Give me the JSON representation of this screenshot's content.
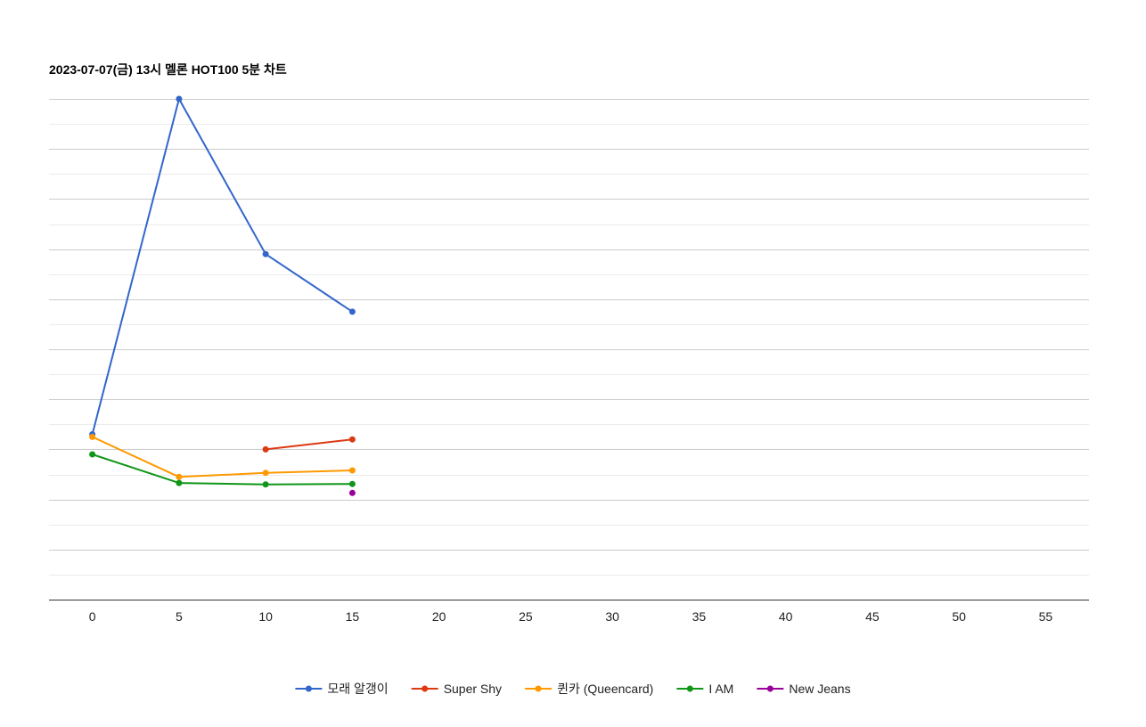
{
  "chart_data": {
    "type": "line",
    "title": "2023-07-07(금) 13시 멜론 HOT100 5분 차트",
    "xlabel": "",
    "ylabel": "",
    "x_ticks": [
      0,
      5,
      10,
      15,
      20,
      25,
      30,
      35,
      40,
      45,
      50,
      55
    ],
    "xlim": [
      -2.5,
      57.5
    ],
    "ylim": [
      0,
      10
    ],
    "y_gridlines": [
      0,
      0.5,
      1,
      1.5,
      2,
      2.5,
      3,
      3.5,
      4,
      4.5,
      5,
      5.5,
      6,
      6.5,
      7,
      7.5,
      8,
      8.5,
      9,
      9.5,
      10
    ],
    "y_major_gridlines": [
      1,
      2,
      3,
      4,
      5,
      6,
      7,
      8,
      9,
      10
    ],
    "y_tick_labels_shown": false,
    "grid": true,
    "legend_position": "bottom",
    "series": [
      {
        "name": "모래 알갱이",
        "color": "#3366cc",
        "points": [
          [
            0,
            3.3
          ],
          [
            5,
            10.0
          ],
          [
            10,
            6.9
          ],
          [
            15,
            5.75
          ]
        ]
      },
      {
        "name": "Super Shy",
        "color": "#dc3912",
        "points": [
          [
            10,
            3.0
          ],
          [
            15,
            3.2
          ]
        ]
      },
      {
        "name": "퀸카 (Queencard)",
        "color": "#ff9900",
        "points": [
          [
            0,
            3.25
          ],
          [
            5,
            2.45
          ],
          [
            10,
            2.53
          ],
          [
            15,
            2.58
          ]
        ]
      },
      {
        "name": "I AM",
        "color": "#109618",
        "points": [
          [
            0,
            2.9
          ],
          [
            5,
            2.33
          ],
          [
            10,
            2.3
          ],
          [
            15,
            2.31
          ]
        ]
      },
      {
        "name": "New Jeans",
        "color": "#990099",
        "points": [
          [
            15,
            2.13
          ]
        ]
      }
    ]
  }
}
